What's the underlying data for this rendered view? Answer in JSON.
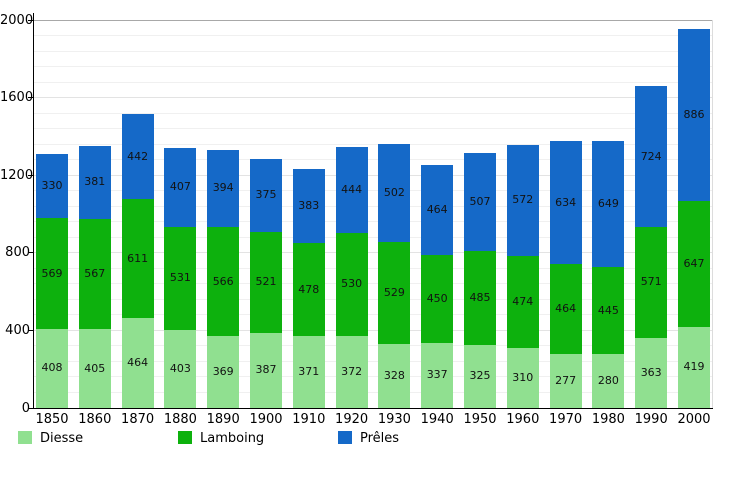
{
  "chart_data": {
    "type": "bar",
    "stacked": true,
    "title": "",
    "xlabel": "",
    "ylabel": "",
    "categories": [
      "1850",
      "1860",
      "1870",
      "1880",
      "1890",
      "1900",
      "1910",
      "1920",
      "1930",
      "1940",
      "1950",
      "1960",
      "1970",
      "1980",
      "1990",
      "2000"
    ],
    "series": [
      {
        "name": "Diesse",
        "color": "#90e090",
        "values": [
          408,
          405,
          464,
          403,
          369,
          387,
          371,
          372,
          328,
          337,
          325,
          310,
          277,
          280,
          363,
          419
        ]
      },
      {
        "name": "Lamboing",
        "color": "#0db10d",
        "values": [
          569,
          567,
          611,
          531,
          566,
          521,
          478,
          530,
          529,
          450,
          485,
          474,
          464,
          445,
          571,
          647
        ]
      },
      {
        "name": "Prêles",
        "color": "#1569c8",
        "values": [
          330,
          381,
          442,
          407,
          394,
          375,
          383,
          444,
          502,
          464,
          507,
          572,
          634,
          649,
          724,
          886
        ]
      }
    ],
    "ylim": [
      0,
      2000
    ],
    "yticks": [
      0,
      400,
      800,
      1200,
      1600,
      2000
    ],
    "minor_grid_step": 80,
    "grid": true,
    "legend_position": "bottom",
    "colors": {
      "grid_minor": "#f0f0f0",
      "grid_major": "#e3e3e3",
      "grid_top": "#a8a8a8",
      "right_border": "#dcdcdc",
      "axis": "#000000",
      "value_label": "#121212"
    }
  }
}
